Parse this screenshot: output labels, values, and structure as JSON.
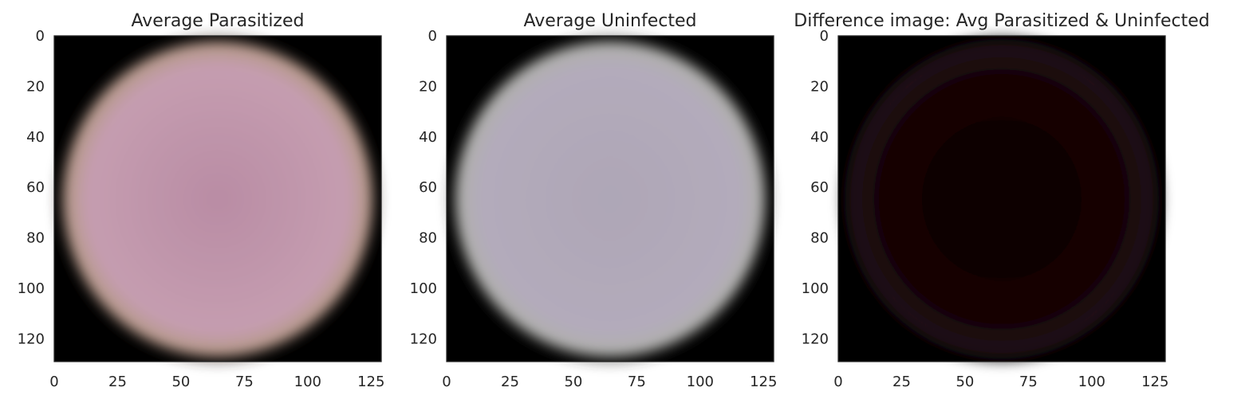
{
  "chart_data": [
    {
      "type": "image",
      "title": "Average Parasitized",
      "image": {
        "width": 130,
        "height": 130,
        "fill_color": "#ba8ea5",
        "background_color": "#000000"
      },
      "xticks": [
        0,
        25,
        50,
        75,
        100,
        125
      ],
      "yticks": [
        0,
        20,
        40,
        60,
        80,
        100,
        120
      ],
      "xlim": [
        0,
        129
      ],
      "ylim": [
        129,
        0
      ]
    },
    {
      "type": "image",
      "title": "Average Uninfected",
      "image": {
        "width": 130,
        "height": 130,
        "fill_color": "#aea6b6",
        "background_color": "#000000"
      },
      "xticks": [
        0,
        25,
        50,
        75,
        100,
        125
      ],
      "yticks": [
        0,
        20,
        40,
        60,
        80,
        100,
        120
      ],
      "xlim": [
        0,
        129
      ],
      "ylim": [
        129,
        0
      ]
    },
    {
      "type": "image",
      "title": "Difference image: Avg Parasitized & Uninfected",
      "image": {
        "width": 130,
        "height": 130,
        "fill_color": "#140002",
        "background_color": "#000000"
      },
      "xticks": [
        0,
        25,
        50,
        75,
        100,
        125
      ],
      "yticks": [
        0,
        20,
        40,
        60,
        80,
        100,
        120
      ],
      "xlim": [
        0,
        129
      ],
      "ylim": [
        129,
        0
      ]
    }
  ]
}
